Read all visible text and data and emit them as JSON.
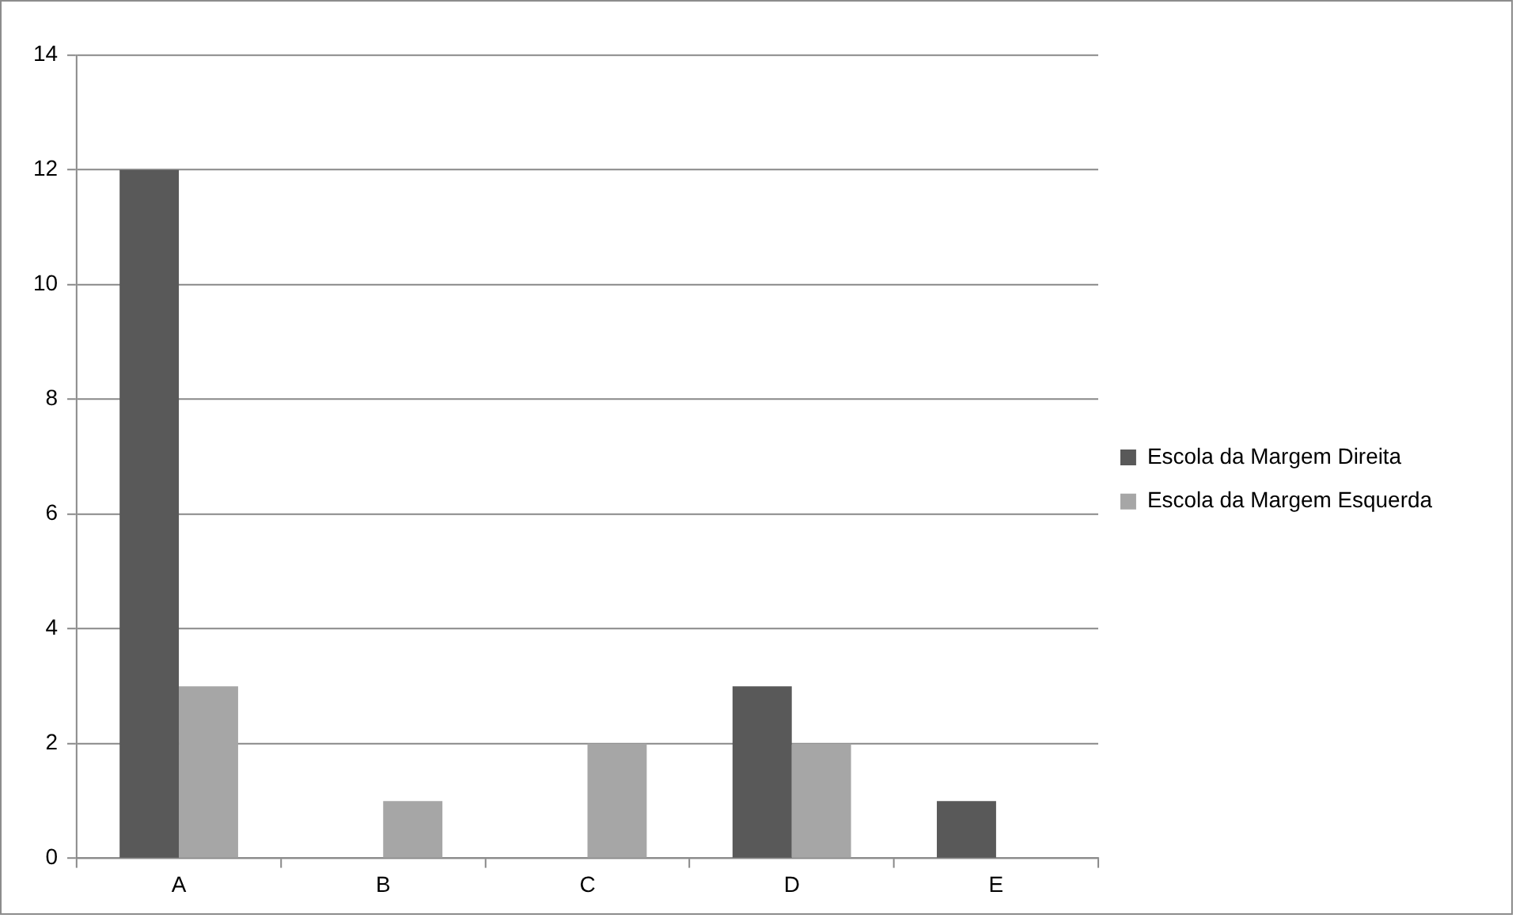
{
  "chart_data": {
    "type": "bar",
    "categories": [
      "A",
      "B",
      "C",
      "D",
      "E"
    ],
    "series": [
      {
        "name": "Escola da Margem Direita",
        "color": "#595959",
        "values": [
          12,
          0,
          0,
          3,
          1
        ]
      },
      {
        "name": "Escola da Margem Esquerda",
        "color": "#a6a6a6",
        "values": [
          3,
          1,
          2,
          2,
          0
        ]
      }
    ],
    "ylim": [
      0,
      14
    ],
    "yticks": [
      0,
      2,
      4,
      6,
      8,
      10,
      12,
      14
    ],
    "grid": "y",
    "legend": "right"
  }
}
